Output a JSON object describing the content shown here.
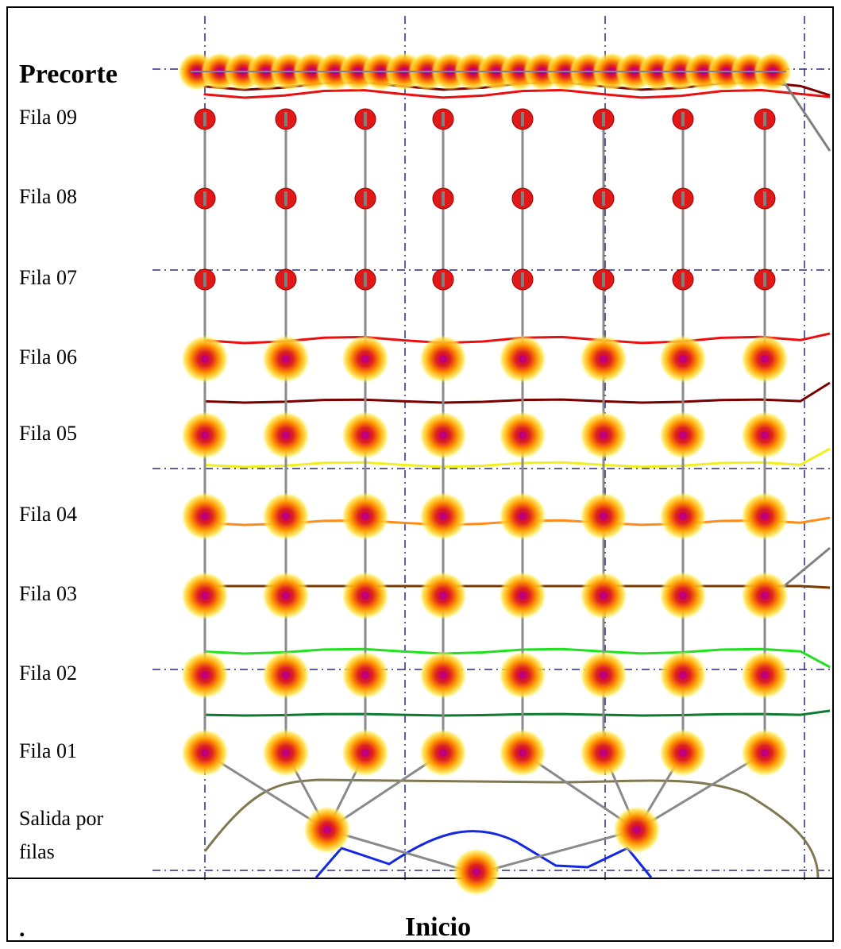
{
  "labels": {
    "precorte": "Precorte",
    "rows": [
      "Fila 09",
      "Fila 08",
      "Fila 07",
      "Fila 06",
      "Fila 05",
      "Fila 04",
      "Fila 03",
      "Fila 02",
      "Fila 01"
    ],
    "salida": "Salida por filas",
    "inicio": "Inicio",
    "dot": "."
  }
}
